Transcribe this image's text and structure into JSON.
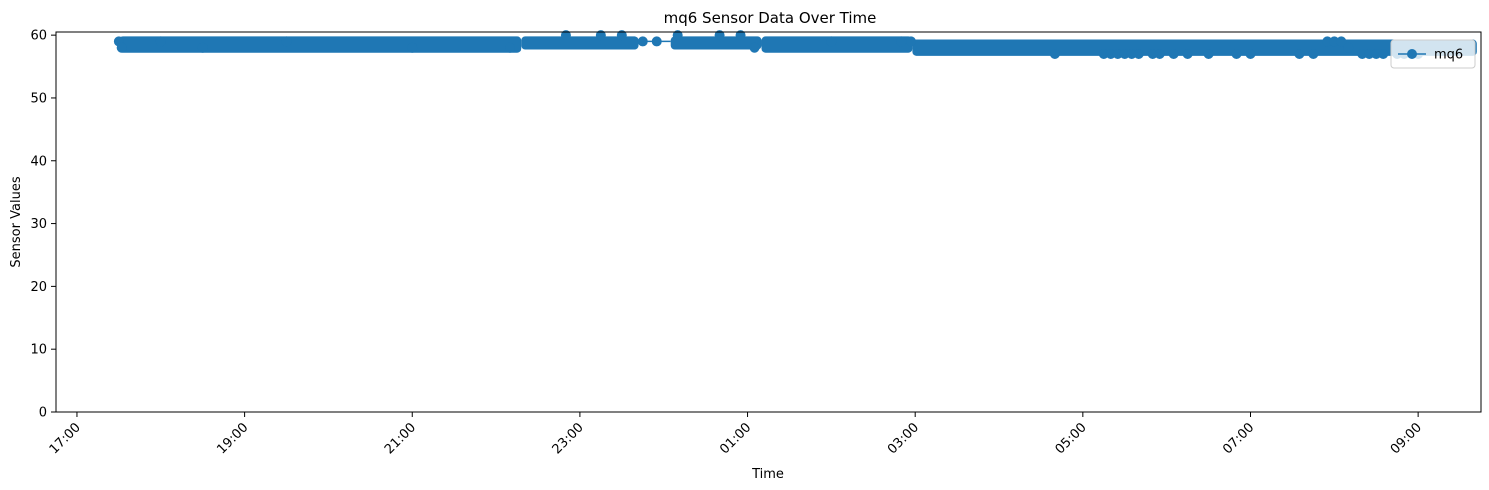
{
  "chart_data": {
    "type": "line",
    "title": "mq6 Sensor Data Over Time",
    "xlabel": "Time",
    "ylabel": "Sensor Values",
    "x_axis": {
      "type": "time",
      "range": [
        "16:45",
        "09:45"
      ],
      "ticks": [
        "17:00",
        "19:00",
        "21:00",
        "23:00",
        "01:00",
        "03:00",
        "05:00",
        "07:00",
        "09:00"
      ]
    },
    "y_axis": {
      "range": [
        0,
        60.5
      ],
      "ticks": [
        "0",
        "10",
        "20",
        "30",
        "40",
        "50",
        "60"
      ]
    },
    "grid": false,
    "legend": {
      "position": "top-right",
      "entries": [
        "mq6"
      ]
    },
    "colors": {
      "series": "#1f77b4"
    },
    "series": [
      {
        "name": "mq6",
        "marker": "circle",
        "band_segments": [
          {
            "start": "17:30",
            "end": "22:18",
            "low": 58,
            "high": 59
          },
          {
            "start": "22:18",
            "end": "23:42",
            "low": 58.5,
            "high": 59
          },
          {
            "start": "00:05",
            "end": "01:10",
            "low": 58.5,
            "high": 59
          },
          {
            "start": "01:10",
            "end": "02:58",
            "low": 58,
            "high": 59
          },
          {
            "start": "02:58",
            "end": "09:42",
            "low": 57.5,
            "high": 58.5
          }
        ],
        "points": [
          [
            "17:30",
            59
          ],
          [
            "17:32",
            58
          ],
          [
            "18:00",
            59
          ],
          [
            "18:30",
            58
          ],
          [
            "19:30",
            59
          ],
          [
            "21:00",
            58
          ],
          [
            "22:10",
            58
          ],
          [
            "22:50",
            60
          ],
          [
            "23:15",
            60
          ],
          [
            "23:30",
            60
          ],
          [
            "23:45",
            59
          ],
          [
            "23:55",
            59
          ],
          [
            "00:10",
            60
          ],
          [
            "00:40",
            60
          ],
          [
            "00:55",
            60
          ],
          [
            "01:05",
            58
          ],
          [
            "02:00",
            59
          ],
          [
            "02:50",
            59
          ],
          [
            "02:57",
            59
          ],
          [
            "04:40",
            57
          ],
          [
            "05:15",
            57
          ],
          [
            "05:20",
            57
          ],
          [
            "05:25",
            57
          ],
          [
            "05:30",
            57
          ],
          [
            "05:35",
            57
          ],
          [
            "05:40",
            57
          ],
          [
            "05:50",
            57
          ],
          [
            "05:55",
            57
          ],
          [
            "06:05",
            57
          ],
          [
            "06:15",
            57
          ],
          [
            "06:30",
            57
          ],
          [
            "06:50",
            57
          ],
          [
            "07:00",
            57
          ],
          [
            "07:35",
            57
          ],
          [
            "07:45",
            57
          ],
          [
            "07:55",
            59
          ],
          [
            "08:00",
            59
          ],
          [
            "08:05",
            59
          ],
          [
            "08:10",
            58
          ],
          [
            "08:20",
            57
          ],
          [
            "08:25",
            57
          ],
          [
            "08:30",
            57
          ],
          [
            "08:35",
            57
          ],
          [
            "08:45",
            57
          ],
          [
            "08:50",
            57
          ],
          [
            "09:00",
            57
          ]
        ]
      }
    ]
  }
}
